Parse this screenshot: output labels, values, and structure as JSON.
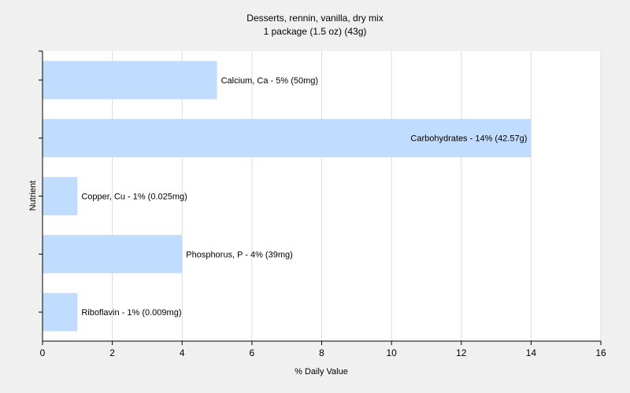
{
  "chart_data": {
    "type": "bar",
    "orientation": "horizontal",
    "title": "Desserts, rennin, vanilla, dry mix",
    "subtitle": "1 package (1.5 oz) (43g)",
    "xlabel": "% Daily Value",
    "ylabel": "Nutrient",
    "xlim": [
      0,
      16
    ],
    "xticks": [
      0,
      2,
      4,
      6,
      8,
      10,
      12,
      14,
      16
    ],
    "grid": true,
    "categories": [
      "Calcium, Ca",
      "Carbohydrates",
      "Copper, Cu",
      "Phosphorus, P",
      "Riboflavin"
    ],
    "values": [
      5,
      14,
      1,
      4,
      1
    ],
    "data_labels": [
      "Calcium, Ca - 5% (50mg)",
      "Carbohydrates - 14% (42.57g)",
      "Copper, Cu - 1% (0.025mg)",
      "Phosphorus, P - 4% (39mg)",
      "Riboflavin - 1% (0.009mg)"
    ],
    "bar_color": "#c0dcff",
    "grid_color": "#dcdcdc",
    "plot_background": "#ffffff"
  }
}
